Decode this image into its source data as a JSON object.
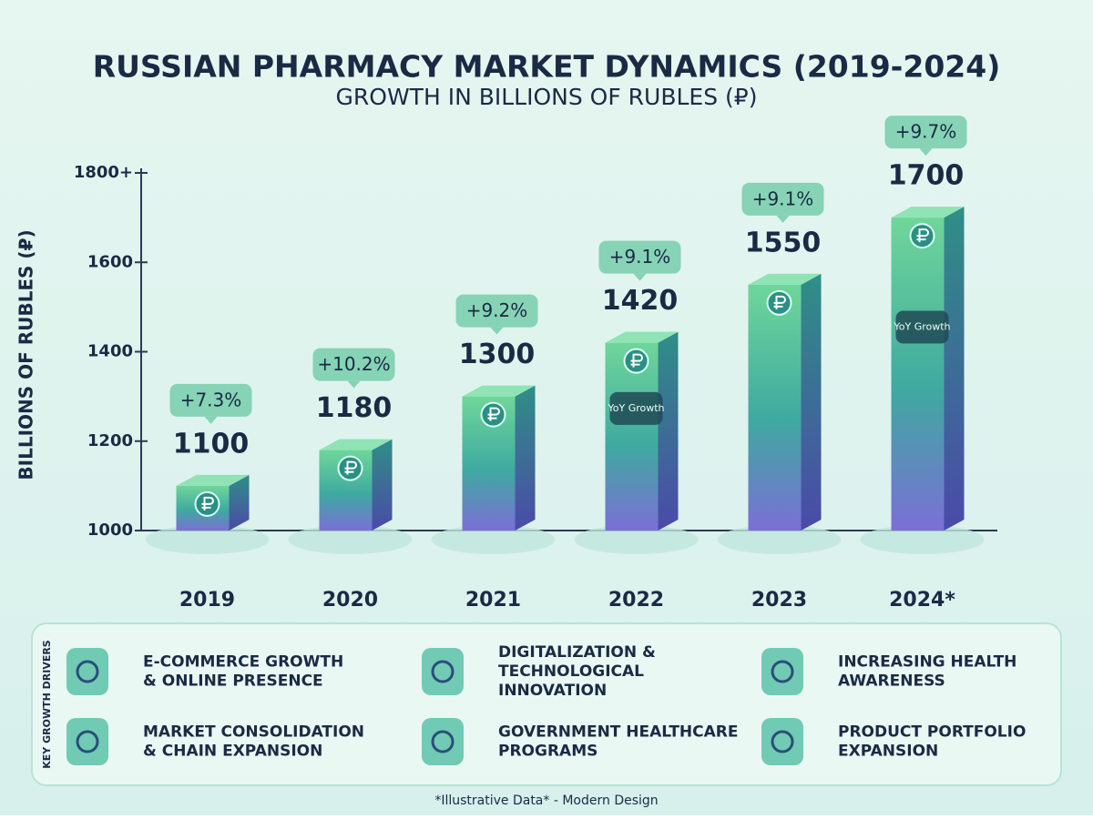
{
  "chart_data": {
    "type": "bar",
    "title": "RUSSIAN PHARMACY MARKET DYNAMICS (2019-2024)",
    "subtitle": "GROWTH IN BILLIONS OF RUBLES (₽)",
    "y_label": "BILLIONS OF RUBLES (₽)",
    "categories": [
      "2019",
      "2020",
      "2021",
      "2022",
      "2023",
      "2024*"
    ],
    "values": [
      1100,
      1180,
      1300,
      1420,
      1550,
      1700
    ],
    "ylim": [
      1000,
      1800
    ],
    "yticks": [
      1000,
      1200,
      1400,
      1600,
      {
        "value": 1800,
        "label": "1800+"
      }
    ],
    "growth": {
      "values": [
        7.3,
        10.2,
        9.2,
        9.1,
        9.1,
        9.7
      ],
      "value_labels": [
        "+7.3%",
        "+10.2%",
        "+9.2%",
        "+9.1%",
        "+9.1%",
        "+9.7%"
      ]
    },
    "annotations": [
      null,
      null,
      null,
      "YoY Growth",
      null,
      "YoY Growth"
    ]
  },
  "drivers": {
    "title": "KEY GROWTH DRIVERS",
    "items": [
      {
        "lines": [
          "E-COMMERCE GROWTH",
          "& ONLINE PRESENCE"
        ]
      },
      {
        "lines": [
          "DIGITALIZATION &",
          "TECHNOLOGICAL",
          "INNOVATION"
        ]
      },
      {
        "lines": [
          "INCREASING HEALTH",
          "AWARENESS"
        ]
      },
      {
        "lines": [
          "MARKET CONSOLIDATION",
          "& CHAIN EXPANSION"
        ]
      },
      {
        "lines": [
          "GOVERNMENT HEALTHCARE",
          "PROGRAMS"
        ]
      },
      {
        "lines": [
          "PRODUCT PORTFOLIO",
          "EXPANSION"
        ]
      }
    ]
  },
  "footer": "*Illustrative Data* - Modern Design"
}
